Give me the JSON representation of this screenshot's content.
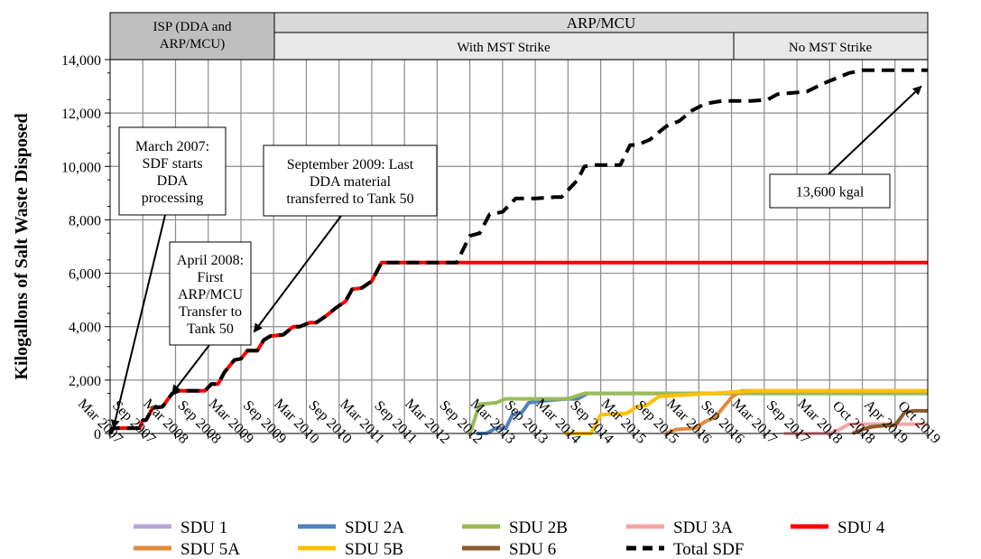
{
  "chart_data": {
    "type": "line",
    "ylabel": "Kilogallons of Salt Waste Disposed",
    "xlabel": "",
    "ylim": [
      0,
      14000
    ],
    "y_ticks": [
      "0",
      "2,000",
      "4,000",
      "6,000",
      "8,000",
      "10,000",
      "12,000",
      "14,000"
    ],
    "x_ticks": [
      "Mar 2007",
      "Sep 2007",
      "Mar 2008",
      "Sep 2008",
      "Mar 2009",
      "Sep 2009",
      "Mar 2010",
      "Sep 2010",
      "Mar 2011",
      "Sep 2011",
      "Mar 2012",
      "Sep 2012",
      "Mar 2013",
      "Sep 2013",
      "Mar 2014",
      "Sep 2014",
      "Mar 2015",
      "Sep 2015",
      "Mar 2016",
      "Sep 2016",
      "Mar 2017",
      "Sep 2017",
      "Mar 2018",
      "Oct 2018",
      "Apr 2019",
      "Oct 2019"
    ],
    "grid": true,
    "phase_headers": {
      "isp": "ISP (DDA and ARP/MCU)",
      "arp": "ARP/MCU",
      "with_mst": "With MST Strike",
      "no_mst": "No MST Strike"
    },
    "annotations": [
      {
        "id": "march2007",
        "lines": [
          "March 2007:",
          "SDF starts",
          "DDA",
          "processing"
        ]
      },
      {
        "id": "april2008",
        "lines": [
          "April 2008:",
          "First",
          "ARP/MCU",
          "Transfer to",
          "Tank 50"
        ]
      },
      {
        "id": "sept2009",
        "lines": [
          "September 2009: Last",
          "DDA material",
          "transferred to Tank 50"
        ]
      },
      {
        "id": "total",
        "lines": [
          "13,600  kgal"
        ]
      }
    ],
    "series": [
      {
        "name": "SDU 1",
        "color": "#b4a7d6",
        "width": 4,
        "dash": "",
        "points": []
      },
      {
        "name": "SDU 2A",
        "color": "#4f81bd",
        "width": 4,
        "dash": "",
        "points": [
          [
            11.2,
            0
          ],
          [
            11.5,
            0
          ],
          [
            11.8,
            200
          ],
          [
            12.1,
            200
          ],
          [
            12.3,
            700
          ],
          [
            12.6,
            800
          ],
          [
            12.8,
            1150
          ],
          [
            13.1,
            1200
          ],
          [
            13.5,
            1250
          ],
          [
            14.0,
            1300
          ],
          [
            14.3,
            1300
          ],
          [
            14.6,
            1500
          ],
          [
            25.0,
            1500
          ]
        ]
      },
      {
        "name": "SDU 2B",
        "color": "#9bbb59",
        "width": 4,
        "dash": "",
        "points": [
          [
            11.0,
            0
          ],
          [
            11.3,
            1100
          ],
          [
            11.8,
            1150
          ],
          [
            12.1,
            1300
          ],
          [
            13.0,
            1300
          ],
          [
            14.0,
            1300
          ],
          [
            14.5,
            1500
          ],
          [
            25.0,
            1500
          ]
        ]
      },
      {
        "name": "SDU 3A",
        "color": "#f4a6a6",
        "width": 4,
        "dash": "",
        "points": [
          [
            20.6,
            0
          ],
          [
            22.0,
            0
          ],
          [
            22.3,
            150
          ],
          [
            22.6,
            350
          ],
          [
            25.0,
            350
          ]
        ]
      },
      {
        "name": "SDU 4",
        "color": "#ff0000",
        "width": 4,
        "dash": "",
        "points": [
          [
            0.0,
            0
          ],
          [
            0.1,
            200
          ],
          [
            0.9,
            200
          ],
          [
            1.0,
            500
          ],
          [
            1.1,
            500
          ],
          [
            1.3,
            950
          ],
          [
            1.6,
            1000
          ],
          [
            1.9,
            1500
          ],
          [
            2.1,
            1600
          ],
          [
            2.9,
            1600
          ],
          [
            3.1,
            1850
          ],
          [
            3.3,
            1850
          ],
          [
            3.5,
            2300
          ],
          [
            3.8,
            2750
          ],
          [
            4.0,
            2800
          ],
          [
            4.2,
            3100
          ],
          [
            4.5,
            3100
          ],
          [
            4.7,
            3500
          ],
          [
            4.9,
            3650
          ],
          [
            5.3,
            3700
          ],
          [
            5.6,
            4000
          ],
          [
            5.8,
            4000
          ],
          [
            6.1,
            4150
          ],
          [
            6.3,
            4150
          ],
          [
            6.6,
            4400
          ],
          [
            6.9,
            4700
          ],
          [
            7.2,
            4950
          ],
          [
            7.4,
            5400
          ],
          [
            7.7,
            5450
          ],
          [
            8.0,
            5700
          ],
          [
            8.3,
            6400
          ],
          [
            25.0,
            6400
          ]
        ]
      },
      {
        "name": "SDU 5A",
        "color": "#e08a3c",
        "width": 4,
        "dash": "",
        "points": [
          [
            17.0,
            0
          ],
          [
            17.3,
            150
          ],
          [
            17.9,
            200
          ],
          [
            18.2,
            450
          ],
          [
            18.5,
            600
          ],
          [
            18.8,
            1050
          ],
          [
            19.0,
            1350
          ],
          [
            19.3,
            1600
          ],
          [
            25.0,
            1600
          ]
        ]
      },
      {
        "name": "SDU 5B",
        "color": "#ffc000",
        "width": 4,
        "dash": "",
        "points": [
          [
            13.9,
            0
          ],
          [
            14.7,
            0
          ],
          [
            15.0,
            700
          ],
          [
            15.8,
            750
          ],
          [
            16.1,
            1000
          ],
          [
            16.4,
            1050
          ],
          [
            16.8,
            1400
          ],
          [
            17.0,
            1400
          ],
          [
            19.7,
            1600
          ],
          [
            25.0,
            1600
          ]
        ]
      },
      {
        "name": "SDU 6",
        "color": "#8b5a2b",
        "width": 4,
        "dash": "",
        "points": [
          [
            22.7,
            0
          ],
          [
            23.0,
            150
          ],
          [
            23.3,
            250
          ],
          [
            23.7,
            300
          ],
          [
            24.0,
            300
          ],
          [
            24.3,
            800
          ],
          [
            24.6,
            850
          ],
          [
            25.0,
            850
          ]
        ]
      },
      {
        "name": "Total SDF",
        "color": "#000000",
        "width": 4,
        "dash": "14,8",
        "points": [
          [
            0.0,
            0
          ],
          [
            0.1,
            200
          ],
          [
            0.9,
            200
          ],
          [
            1.0,
            500
          ],
          [
            1.1,
            500
          ],
          [
            1.3,
            950
          ],
          [
            1.6,
            1000
          ],
          [
            1.9,
            1500
          ],
          [
            2.1,
            1600
          ],
          [
            2.9,
            1600
          ],
          [
            3.1,
            1850
          ],
          [
            3.3,
            1850
          ],
          [
            3.5,
            2300
          ],
          [
            3.8,
            2750
          ],
          [
            4.0,
            2800
          ],
          [
            4.2,
            3100
          ],
          [
            4.5,
            3100
          ],
          [
            4.7,
            3500
          ],
          [
            4.9,
            3650
          ],
          [
            5.3,
            3700
          ],
          [
            5.6,
            4000
          ],
          [
            5.8,
            4000
          ],
          [
            6.1,
            4150
          ],
          [
            6.3,
            4150
          ],
          [
            6.6,
            4400
          ],
          [
            6.9,
            4700
          ],
          [
            7.2,
            4950
          ],
          [
            7.4,
            5400
          ],
          [
            7.7,
            5450
          ],
          [
            8.0,
            5700
          ],
          [
            8.3,
            6400
          ],
          [
            10.6,
            6400
          ],
          [
            11.0,
            7400
          ],
          [
            11.3,
            7500
          ],
          [
            11.6,
            8200
          ],
          [
            12.0,
            8300
          ],
          [
            12.4,
            8800
          ],
          [
            13.0,
            8800
          ],
          [
            13.6,
            8850
          ],
          [
            13.8,
            8850
          ],
          [
            14.3,
            9500
          ],
          [
            14.5,
            10000
          ],
          [
            14.8,
            10050
          ],
          [
            15.6,
            10050
          ],
          [
            15.9,
            10800
          ],
          [
            16.1,
            10800
          ],
          [
            16.5,
            11000
          ],
          [
            17.0,
            11500
          ],
          [
            17.4,
            11700
          ],
          [
            17.8,
            12100
          ],
          [
            18.2,
            12350
          ],
          [
            18.7,
            12450
          ],
          [
            19.3,
            12450
          ],
          [
            19.6,
            12450
          ],
          [
            20.1,
            12500
          ],
          [
            20.4,
            12700
          ],
          [
            20.8,
            12750
          ],
          [
            21.3,
            12800
          ],
          [
            21.8,
            13100
          ],
          [
            22.2,
            13300
          ],
          [
            22.6,
            13500
          ],
          [
            23.0,
            13600
          ],
          [
            25.0,
            13600
          ]
        ]
      }
    ]
  }
}
